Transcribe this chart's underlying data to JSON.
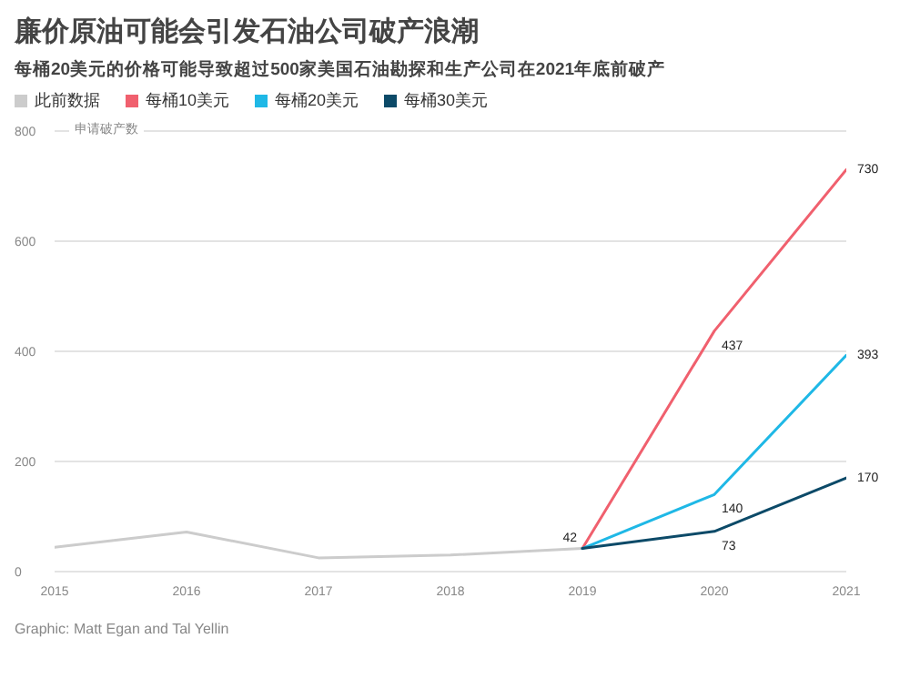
{
  "chart_data": {
    "type": "line",
    "title": "廉价原油可能会引发石油公司破产浪潮",
    "subtitle": "每桶20美元的价格可能导致超过500家美国石油勘探和生产公司在2021年底前破产",
    "ylabel": "申请破产数",
    "categories": [
      "2015",
      "2016",
      "2017",
      "2018",
      "2019",
      "2020",
      "2021"
    ],
    "series": [
      {
        "name": "此前数据",
        "color": "#cccccc",
        "values": [
          44,
          72,
          25,
          30,
          42,
          null,
          null
        ],
        "value_labels": [
          null,
          null,
          null,
          null,
          "42",
          null,
          null
        ]
      },
      {
        "name": "每桶10美元",
        "color": "#f0606e",
        "values": [
          null,
          null,
          null,
          null,
          42,
          437,
          730
        ],
        "value_labels": [
          null,
          null,
          null,
          null,
          null,
          "437",
          "730"
        ]
      },
      {
        "name": "每桶20美元",
        "color": "#1fb8e6",
        "values": [
          null,
          null,
          null,
          null,
          42,
          140,
          393
        ],
        "value_labels": [
          null,
          null,
          null,
          null,
          null,
          "140",
          "393"
        ]
      },
      {
        "name": "每桶30美元",
        "color": "#0c4a68",
        "values": [
          null,
          null,
          null,
          null,
          42,
          73,
          170
        ],
        "value_labels": [
          null,
          null,
          null,
          null,
          null,
          "73",
          "170"
        ]
      }
    ],
    "ylim": [
      0,
      800
    ],
    "yticks": [
      0,
      200,
      400,
      600,
      800
    ],
    "grid": "y",
    "legend": "top left",
    "marker": "none",
    "line_style": "solid",
    "annotations": [
      "Graphic: Matt Egan and Tal Yellin"
    ]
  }
}
